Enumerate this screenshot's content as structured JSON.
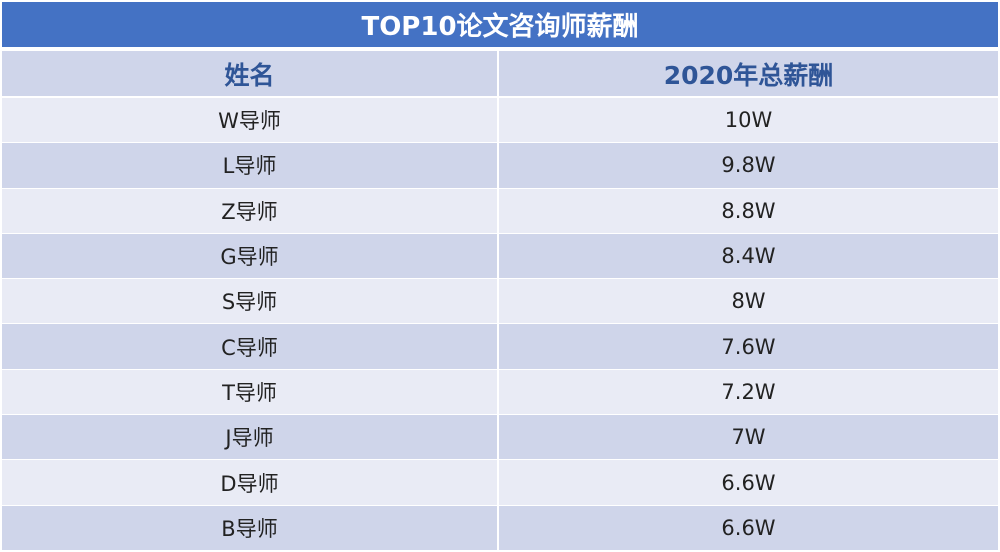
{
  "chart_data": {
    "type": "table",
    "title": "TOP10论文咨询师薪酬",
    "columns": [
      "姓名",
      "2020年总薪酬"
    ],
    "rows": [
      [
        "W导师",
        "10W"
      ],
      [
        "L导师",
        "9.8W"
      ],
      [
        "Z导师",
        "8.8W"
      ],
      [
        "G导师",
        "8.4W"
      ],
      [
        "S导师",
        "8W"
      ],
      [
        "C导师",
        "7.6W"
      ],
      [
        "T导师",
        "7.2W"
      ],
      [
        "J导师",
        "7W"
      ],
      [
        "D导师",
        "6.6W"
      ],
      [
        "B导师",
        "6.6W"
      ]
    ]
  },
  "colors": {
    "title_bg": "#4472c4",
    "header_text": "#2f5597",
    "row_light": "#e9ebf5",
    "row_dark": "#cfd5ea"
  }
}
